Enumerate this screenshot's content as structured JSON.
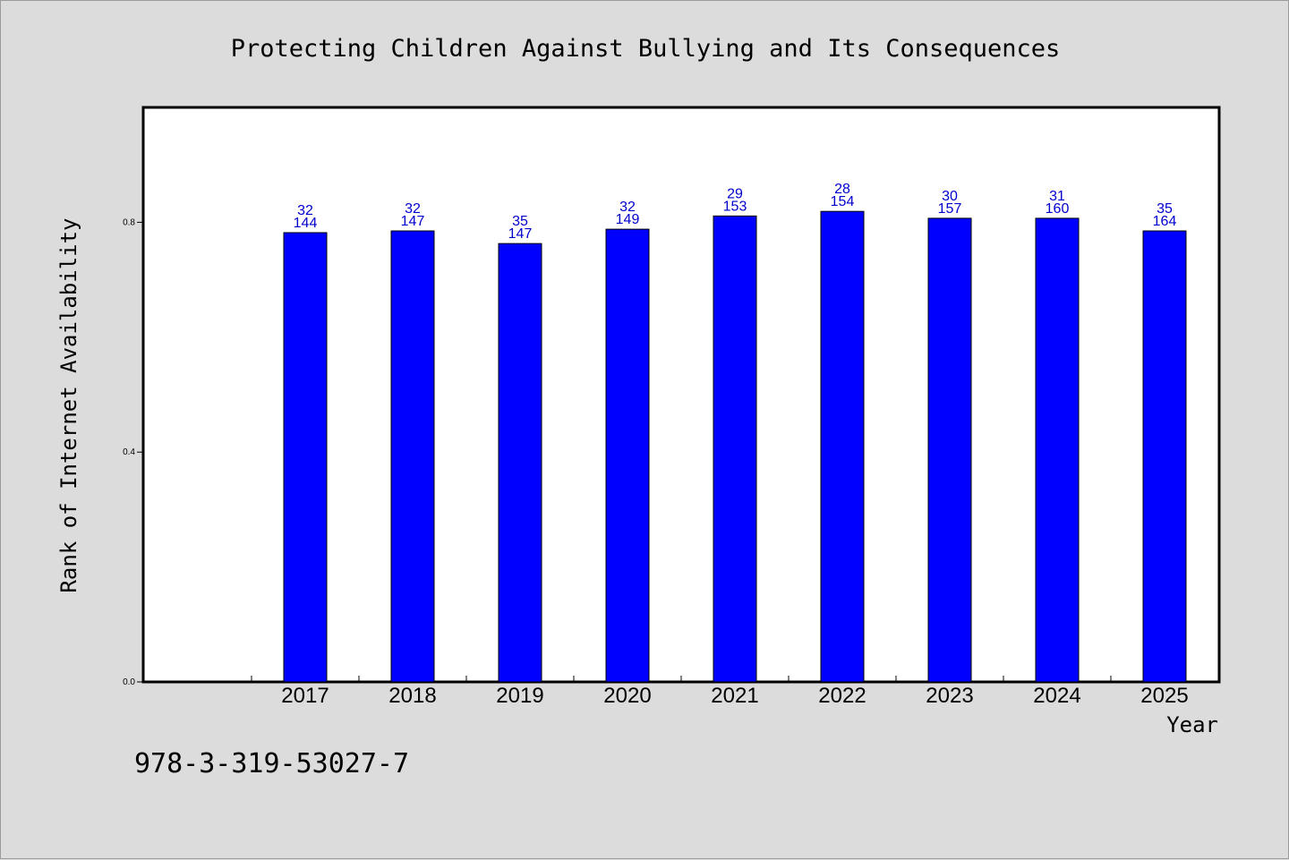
{
  "chart_data": {
    "type": "bar",
    "title": "Protecting Children Against Bullying and Its Consequences",
    "xlabel": "Year",
    "ylabel": "Rank of Internet Availability",
    "categories": [
      "2017",
      "2018",
      "2019",
      "2020",
      "2021",
      "2022",
      "2023",
      "2024",
      "2025"
    ],
    "values": [
      0.782,
      0.785,
      0.763,
      0.788,
      0.811,
      0.819,
      0.807,
      0.807,
      0.785
    ],
    "label_top": [
      "32",
      "32",
      "35",
      "32",
      "29",
      "28",
      "30",
      "31",
      "35"
    ],
    "label_bottom": [
      "144",
      "147",
      "147",
      "149",
      "153",
      "154",
      "157",
      "160",
      "164"
    ],
    "yticks": [
      0.0,
      0.4,
      0.8
    ],
    "ytick_labels": [
      "0.0",
      "0.4",
      "0.8"
    ],
    "ylim": [
      0,
      1.0
    ],
    "grid": false,
    "bar_color": "#0000ff",
    "label_color": "#0000cc"
  },
  "footer_code": "978-3-319-53027-7"
}
